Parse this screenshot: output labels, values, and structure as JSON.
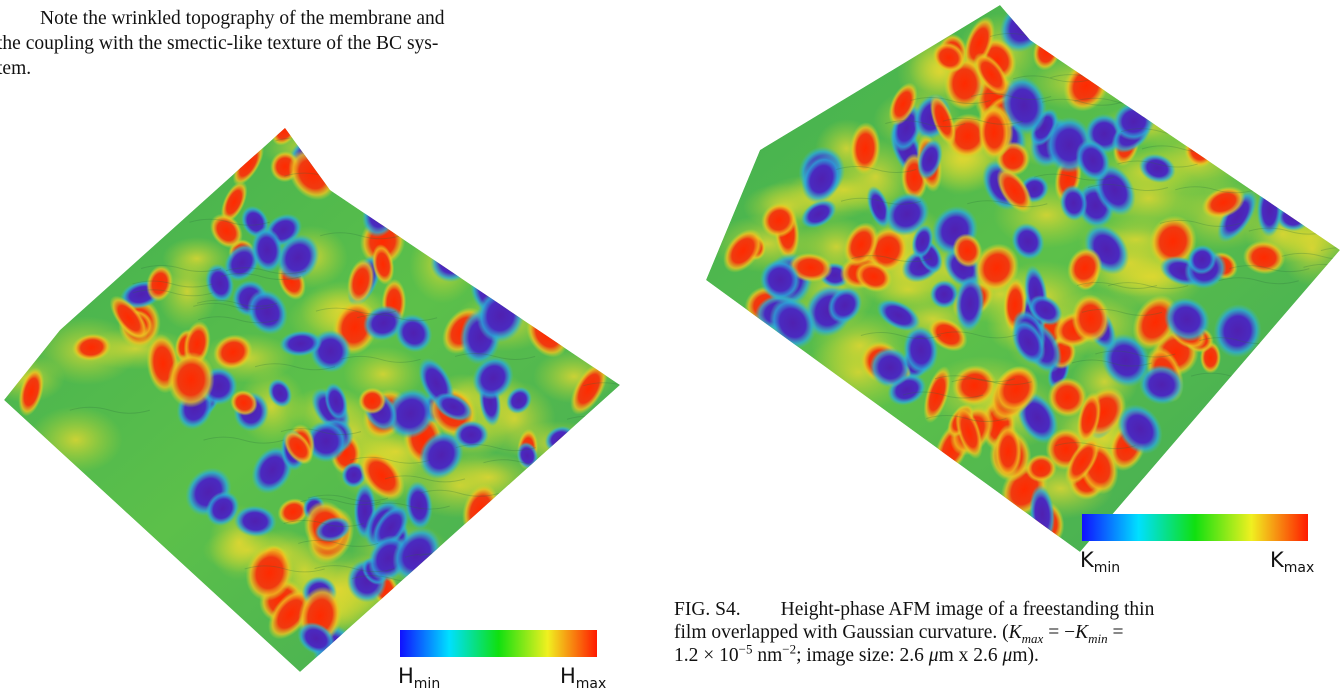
{
  "paragraph": {
    "lines": [
      "Note the wrinkled topography of the membrane and",
      "the coupling with the smectic-like texture of the BC sys-",
      "tem."
    ]
  },
  "left_figure": {
    "colorbar": {
      "min_label": {
        "symbol": "H",
        "sub": "min"
      },
      "max_label": {
        "symbol": "H",
        "sub": "max"
      }
    }
  },
  "right_figure": {
    "colorbar": {
      "min_label": {
        "symbol": "K",
        "sub": "min"
      },
      "max_label": {
        "symbol": "K",
        "sub": "max"
      }
    }
  },
  "caption": {
    "lines": [
      [
        {
          "text": "FIG. S4."
        },
        {
          "text": "Height-phase AFM image of a freestanding thin"
        }
      ],
      [
        {
          "text": "film overlapped with Gaussian curvature. ("
        },
        {
          "text": "K",
          "style": "italic"
        },
        {
          "text": "max",
          "style": "sub"
        },
        {
          "text": " = −"
        },
        {
          "text": "K",
          "style": "italic"
        },
        {
          "text": "min",
          "style": "sub"
        },
        {
          "text": " ="
        }
      ],
      [
        {
          "text": "1.2 × 10"
        },
        {
          "text": "−5",
          "style": "sup"
        },
        {
          "text": " nm"
        },
        {
          "text": "−2",
          "style": "sup"
        },
        {
          "text": "; image size: 2.6 "
        },
        {
          "text": "μ",
          "style": "italic"
        },
        {
          "text": "m x 2.6 "
        },
        {
          "text": "μ",
          "style": "italic"
        },
        {
          "text": "m)."
        }
      ]
    ]
  }
}
